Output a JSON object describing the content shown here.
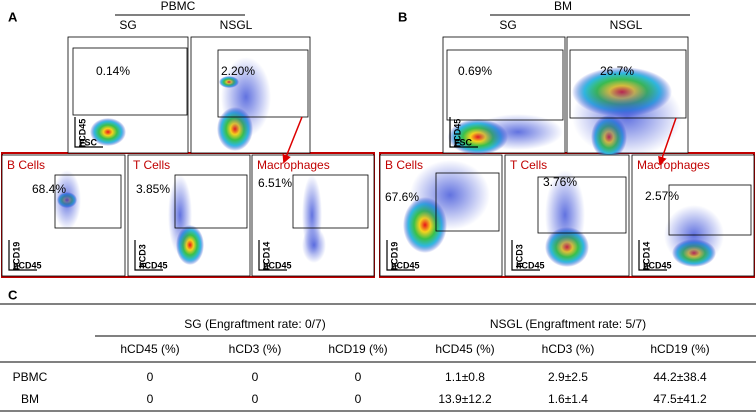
{
  "panel_a": {
    "label": "A",
    "group": "PBMC",
    "conditions": [
      "SG",
      "NSGL"
    ],
    "gate_percents": [
      "0.14%",
      "2.20%"
    ],
    "axes": {
      "y": "hCD45",
      "x": "FSC"
    },
    "subsets": [
      {
        "title": "B Cells",
        "percent": "68.4%",
        "y_axis": "hCD19",
        "x_axis": "hCD45"
      },
      {
        "title": "T Cells",
        "percent": "3.85%",
        "y_axis": "hCD3",
        "x_axis": "hCD45"
      },
      {
        "title": "Macrophages",
        "percent": "6.51%",
        "y_axis": "hCD14",
        "x_axis": "hCD45"
      }
    ]
  },
  "panel_b": {
    "label": "B",
    "group": "BM",
    "conditions": [
      "SG",
      "NSGL"
    ],
    "gate_percents": [
      "0.69%",
      "26.7%"
    ],
    "axes": {
      "y": "hCD45",
      "x": "FSC"
    },
    "subsets": [
      {
        "title": "B Cells",
        "percent": "67.6%",
        "y_axis": "hCD19",
        "x_axis": "hCD45"
      },
      {
        "title": "T Cells",
        "percent": "3.76%",
        "y_axis": "hCD3",
        "x_axis": "hCD45"
      },
      {
        "title": "Macrophages",
        "percent": "2.57%",
        "y_axis": "hCD14",
        "x_axis": "hCD45"
      }
    ]
  },
  "panel_c": {
    "label": "C",
    "groups": [
      "SG (Engraftment rate: 0/7)",
      "NSGL (Engraftment rate: 5/7)"
    ],
    "columns": [
      "hCD45 (%)",
      "hCD3 (%)",
      "hCD19 (%)",
      "hCD45 (%)",
      "hCD3 (%)",
      "hCD19 (%)"
    ],
    "rows": [
      {
        "label": "PBMC",
        "cells": [
          "0",
          "0",
          "0",
          "1.1±0.8",
          "2.9±2.5",
          "44.2±38.4"
        ]
      },
      {
        "label": "BM",
        "cells": [
          "0",
          "0",
          "0",
          "13.9±12.2",
          "1.6±1.4",
          "47.5±41.2"
        ]
      }
    ]
  }
}
